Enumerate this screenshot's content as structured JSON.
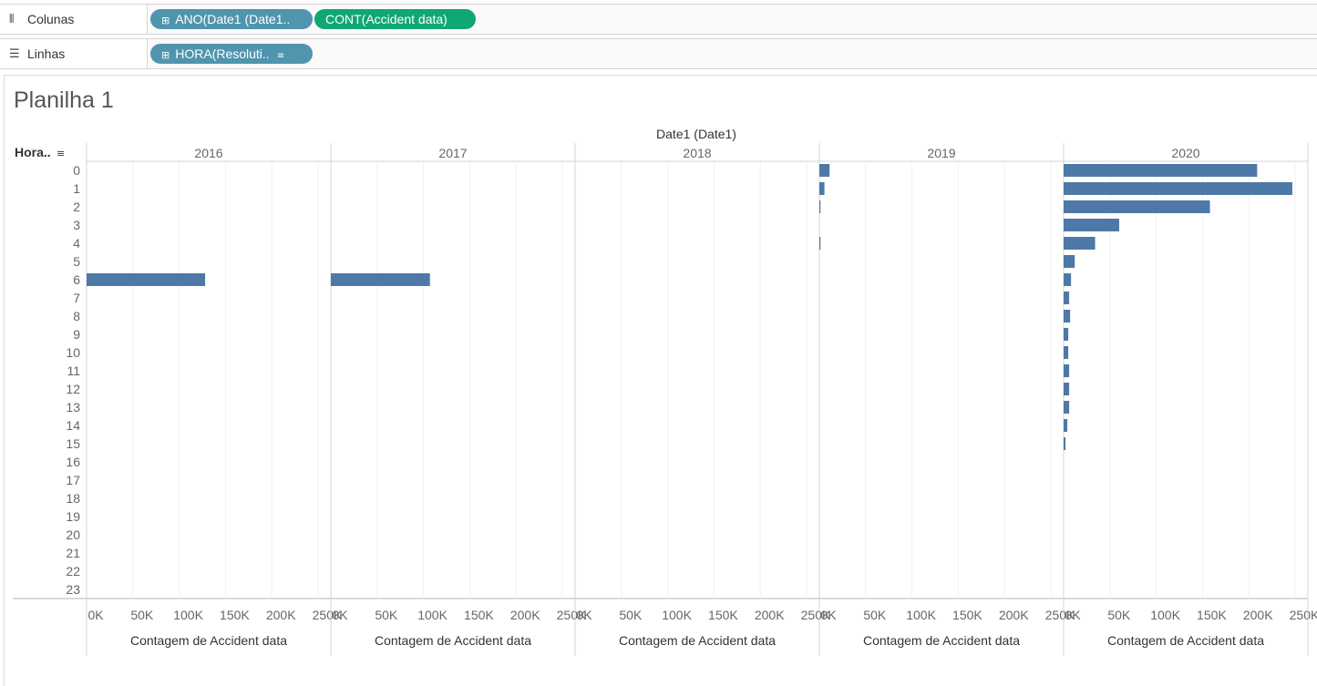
{
  "shelves": {
    "columns": {
      "icon": "columns-icon",
      "label": "Colunas",
      "pills": [
        {
          "text": "ANO(Date1 (Date1..",
          "type": "dimension"
        },
        {
          "text": "CONT(Accident data)",
          "type": "measure"
        }
      ]
    },
    "rows": {
      "icon": "rows-icon",
      "label": "Linhas",
      "pills": [
        {
          "text": "HORA(Resoluti..",
          "type": "dimension",
          "sorted": true
        }
      ]
    }
  },
  "colors": {
    "dimension_pill": "#4f95ad",
    "measure_pill": "#10a776",
    "bar": "#4e79a7"
  },
  "sheet": {
    "title": "Planilha 1"
  },
  "chart_data": {
    "type": "bar",
    "orientation": "horizontal",
    "column_header": "Date1 (Date1)",
    "row_header": "Hora..",
    "panels": [
      "2016",
      "2017",
      "2018",
      "2019",
      "2020"
    ],
    "categories": [
      "0",
      "1",
      "2",
      "3",
      "4",
      "5",
      "6",
      "7",
      "8",
      "9",
      "10",
      "11",
      "12",
      "13",
      "14",
      "15",
      "16",
      "17",
      "18",
      "19",
      "20",
      "21",
      "22",
      "23"
    ],
    "x_ticks": [
      "0K",
      "50K",
      "100K",
      "150K",
      "200K",
      "250K"
    ],
    "xlim": [
      0,
      260000
    ],
    "xlabel": "Contagem de Accident data",
    "grid": true,
    "series": [
      {
        "panel": "2016",
        "values": [
          0,
          0,
          0,
          0,
          0,
          0,
          128000,
          0,
          0,
          0,
          0,
          0,
          0,
          0,
          0,
          0,
          0,
          0,
          0,
          0,
          0,
          0,
          0,
          0
        ]
      },
      {
        "panel": "2017",
        "values": [
          0,
          0,
          0,
          0,
          0,
          0,
          107000,
          0,
          0,
          0,
          0,
          0,
          0,
          0,
          0,
          0,
          0,
          0,
          0,
          0,
          0,
          0,
          0,
          0
        ]
      },
      {
        "panel": "2018",
        "values": [
          0,
          0,
          0,
          0,
          0,
          0,
          0,
          0,
          0,
          0,
          0,
          0,
          0,
          0,
          0,
          0,
          0,
          0,
          0,
          0,
          0,
          0,
          0,
          0
        ]
      },
      {
        "panel": "2019",
        "values": [
          11000,
          5500,
          1200,
          0,
          1200,
          0,
          0,
          0,
          0,
          0,
          0,
          0,
          0,
          0,
          0,
          0,
          0,
          0,
          0,
          0,
          0,
          0,
          0,
          0
        ]
      },
      {
        "panel": "2020",
        "values": [
          209000,
          247000,
          158000,
          60000,
          34000,
          12000,
          8000,
          6000,
          7000,
          5000,
          5000,
          6000,
          6000,
          6000,
          4000,
          2000,
          0,
          0,
          0,
          0,
          0,
          0,
          0,
          0
        ]
      }
    ]
  }
}
